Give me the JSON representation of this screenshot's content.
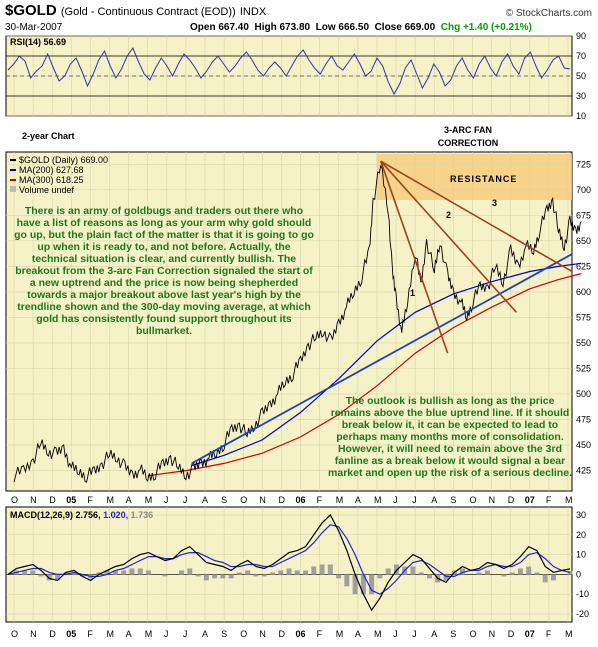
{
  "header": {
    "symbol": "$GOLD",
    "description": "(Gold - Continuous Contract (EOD))",
    "exchange": "INDX",
    "date": "30-Mar-2007",
    "open": "Open 667.40",
    "high": "High 673.80",
    "low": "Low 666.50",
    "close": "Close 669.00",
    "chg": "Chg +1.40 (+0.21%)",
    "brand": "© StockCharts.com"
  },
  "colors": {
    "panel_bg": "#f5f2c8",
    "price": "#000000",
    "ma200": "#0000c0",
    "ma300": "#d00000",
    "rsi": "#3333aa",
    "macd": "#000000",
    "signal": "#2222dd",
    "histogram": "#a0a0a0",
    "fanline": "#a04020",
    "uptrend": "#2040c0",
    "resistance": "#f8c878",
    "annotation": "#1a7a1a"
  },
  "chart_data": [
    {
      "type": "line",
      "panel": "RSI",
      "label": "RSI(14) 56.69",
      "ylim": [
        10,
        90
      ],
      "y_ticks": [
        "90",
        "70",
        "50",
        "30",
        "10"
      ],
      "reference_lines": [
        70,
        30
      ],
      "values": [
        56,
        62,
        70,
        65,
        48,
        55,
        60,
        72,
        58,
        45,
        50,
        62,
        68,
        55,
        40,
        52,
        66,
        75,
        60,
        48,
        57,
        70,
        78,
        64,
        52,
        46,
        58,
        68,
        60,
        50,
        62,
        72,
        66,
        58,
        48,
        55,
        64,
        70,
        62,
        54,
        60,
        68,
        74,
        66,
        56,
        50,
        58,
        64,
        58,
        50,
        60,
        70,
        76,
        66,
        58,
        52,
        62,
        70,
        60,
        56,
        64,
        72,
        62,
        50,
        55,
        68,
        60,
        44,
        32,
        42,
        58,
        66,
        52,
        38,
        48,
        62,
        54,
        40,
        46,
        60,
        68,
        56,
        48,
        62,
        70,
        58,
        50,
        64,
        72,
        60,
        52,
        68,
        74,
        60,
        48,
        56,
        66,
        70,
        58,
        57
      ]
    },
    {
      "type": "line",
      "panel": "Price",
      "title": "2-year Chart",
      "legend": [
        "$GOLD (Daily) 669.00",
        "MA(200) 627.68",
        "MA(300) 618.25",
        "Volume undef"
      ],
      "x_labels": [
        "O",
        "N",
        "D",
        "05",
        "F",
        "M",
        "A",
        "M",
        "J",
        "J",
        "A",
        "S",
        "O",
        "N",
        "D",
        "06",
        "F",
        "M",
        "A",
        "M",
        "J",
        "J",
        "A",
        "S",
        "O",
        "N",
        "D",
        "07",
        "F",
        "M"
      ],
      "y_ticks": [
        725,
        700,
        675,
        650,
        625,
        600,
        575,
        550,
        525,
        500,
        475,
        450,
        425
      ],
      "ylim": [
        405,
        737
      ],
      "x_months": [
        0,
        29.7
      ],
      "price": [
        [
          0,
          420
        ],
        [
          0.5,
          425
        ],
        [
          1,
          435
        ],
        [
          1.4,
          452
        ],
        [
          1.8,
          444
        ],
        [
          2.2,
          441
        ],
        [
          2.6,
          447
        ],
        [
          3,
          428
        ],
        [
          3.4,
          424
        ],
        [
          3.8,
          420
        ],
        [
          4.2,
          424
        ],
        [
          4.6,
          431
        ],
        [
          5,
          441
        ],
        [
          5.4,
          438
        ],
        [
          5.8,
          428
        ],
        [
          6.2,
          421
        ],
        [
          6.6,
          426
        ],
        [
          7,
          418
        ],
        [
          7.4,
          423
        ],
        [
          7.8,
          431
        ],
        [
          8.2,
          438
        ],
        [
          8.6,
          428
        ],
        [
          9,
          421
        ],
        [
          9.4,
          426
        ],
        [
          9.8,
          433
        ],
        [
          10.2,
          437
        ],
        [
          10.6,
          442
        ],
        [
          11,
          452
        ],
        [
          11.4,
          465
        ],
        [
          11.8,
          470
        ],
        [
          12.2,
          460
        ],
        [
          12.6,
          470
        ],
        [
          13,
          480
        ],
        [
          13.4,
          490
        ],
        [
          13.8,
          500
        ],
        [
          14.2,
          512
        ],
        [
          14.6,
          520
        ],
        [
          15,
          532
        ],
        [
          15.4,
          548
        ],
        [
          15.8,
          555
        ],
        [
          16.2,
          562
        ],
        [
          16.6,
          551
        ],
        [
          17,
          570
        ],
        [
          17.4,
          585
        ],
        [
          17.8,
          600
        ],
        [
          18.2,
          615
        ],
        [
          18.6,
          640
        ],
        [
          18.8,
          690
        ],
        [
          19.2,
          725
        ],
        [
          19.6,
          680
        ],
        [
          19.8,
          620
        ],
        [
          20,
          595
        ],
        [
          20.3,
          560
        ],
        [
          20.6,
          590
        ],
        [
          21,
          640
        ],
        [
          21.3,
          605
        ],
        [
          21.6,
          650
        ],
        [
          22,
          620
        ],
        [
          22.3,
          650
        ],
        [
          22.7,
          615
        ],
        [
          23,
          600
        ],
        [
          23.4,
          590
        ],
        [
          23.7,
          575
        ],
        [
          24,
          590
        ],
        [
          24.4,
          605
        ],
        [
          24.8,
          605
        ],
        [
          25.2,
          625
        ],
        [
          25.6,
          610
        ],
        [
          26,
          640
        ],
        [
          26.4,
          625
        ],
        [
          26.8,
          645
        ],
        [
          27.2,
          640
        ],
        [
          27.5,
          660
        ],
        [
          27.9,
          680
        ],
        [
          28.2,
          690
        ],
        [
          28.5,
          660
        ],
        [
          28.8,
          645
        ],
        [
          29.1,
          668
        ],
        [
          29.4,
          660
        ],
        [
          29.7,
          669
        ]
      ],
      "ma200": [
        [
          9.3,
          430
        ],
        [
          11,
          440
        ],
        [
          13,
          455
        ],
        [
          15,
          482
        ],
        [
          17,
          515
        ],
        [
          19,
          552
        ],
        [
          21,
          580
        ],
        [
          23,
          598
        ],
        [
          25,
          610
        ],
        [
          27,
          620
        ],
        [
          28.5,
          625
        ],
        [
          29.7,
          628
        ]
      ],
      "ma300": [
        [
          7,
          420
        ],
        [
          9,
          425
        ],
        [
          11,
          432
        ],
        [
          13,
          442
        ],
        [
          15,
          458
        ],
        [
          17,
          480
        ],
        [
          19,
          508
        ],
        [
          21,
          540
        ],
        [
          23,
          565
        ],
        [
          25,
          585
        ],
        [
          27,
          603
        ],
        [
          28.5,
          612
        ],
        [
          29.7,
          618
        ]
      ],
      "annotations": {
        "resistance_label": "RESISTANCE",
        "resistance_band": [
          690,
          735
        ],
        "fan_label": "3-ARC FAN\nCORRECTION",
        "fan_numbers": [
          "1",
          "2",
          "3"
        ],
        "comment_left": "There is an army of goldbugs and traders out there who have a list of reasons as long as your arm why gold should go up, but the plain fact of the matter is that it is going to go up when it is ready to, and not before. Actually, the technical situation is clear, and currently bullish. The breakout from the 3-arc Fan Correction signaled the start of a new uptrend and the price is now being shepherded towards a major breakout above last year's high by the trendline shown and the 300-day moving average, at which gold has consistently found support throughout its bullmarket.",
        "comment_right": "The outlook is bullish as long as the price remains above the blue uptrend line. If it should break below it, it can be expected to lead to perhaps many months more of consolidation. However, it will need to remain above the 3rd fanline as a break below it would signal a bear market and open up the risk of a serious decline."
      }
    },
    {
      "type": "line",
      "panel": "MACD",
      "label_prefix": "MACD(12,26,9)",
      "macd_value": "2.756",
      "signal_value": "1.020",
      "hist_value": "1.736",
      "ylim": [
        -24,
        34
      ],
      "y_ticks": [
        "30",
        "20",
        "10",
        "0",
        "-10",
        "-20"
      ],
      "macd": [
        0,
        3,
        4,
        5,
        2,
        -2,
        -3,
        1,
        2,
        -1,
        -3,
        0,
        2,
        4,
        5,
        8,
        10,
        11,
        9,
        7,
        8,
        12,
        14,
        10,
        6,
        5,
        4,
        2,
        5,
        7,
        4,
        3,
        5,
        8,
        11,
        12,
        14,
        20,
        26,
        30,
        22,
        12,
        0,
        -10,
        -18,
        -12,
        -4,
        2,
        6,
        10,
        8,
        3,
        -2,
        -4,
        1,
        4,
        2,
        3,
        6,
        5,
        3,
        5,
        9,
        14,
        12,
        4,
        1,
        2,
        2.756
      ],
      "signal": [
        0,
        1,
        2,
        3,
        3,
        1,
        0,
        0,
        1,
        0,
        -1,
        -1,
        0,
        2,
        3,
        5,
        7,
        9,
        9,
        8,
        8,
        10,
        11,
        11,
        9,
        7,
        6,
        4,
        4,
        5,
        5,
        4,
        4,
        6,
        8,
        10,
        12,
        16,
        21,
        25,
        24,
        18,
        10,
        0,
        -8,
        -10,
        -7,
        -3,
        2,
        6,
        7,
        5,
        2,
        -1,
        -1,
        1,
        2,
        2,
        4,
        5,
        4,
        4,
        6,
        10,
        11,
        8,
        4,
        2,
        1.02
      ]
    }
  ],
  "footer_labels": [
    "O",
    "N",
    "D",
    "05",
    "F",
    "M",
    "A",
    "M",
    "J",
    "J",
    "A",
    "S",
    "O",
    "N",
    "D",
    "06",
    "F",
    "M",
    "A",
    "M",
    "J",
    "J",
    "A",
    "S",
    "O",
    "N",
    "D",
    "07",
    "F",
    "M"
  ]
}
